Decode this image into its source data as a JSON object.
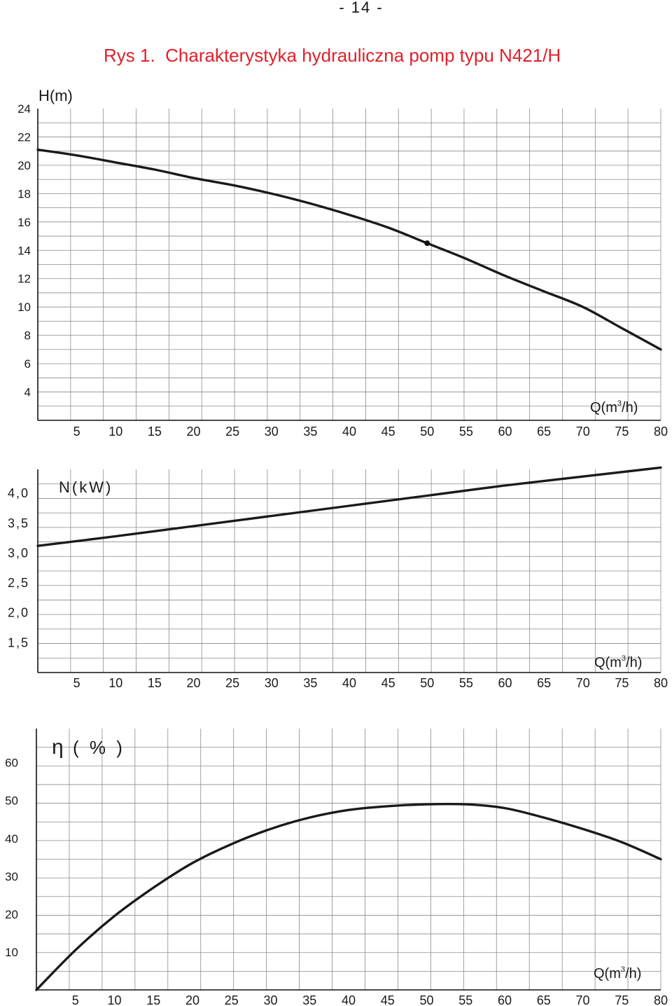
{
  "page": {
    "number": "- 14 -"
  },
  "figure": {
    "title": "Rys 1.  Charakterystyka hydrauliczna pomp typu N421/H"
  },
  "chart_data": [
    {
      "type": "line",
      "id": "head",
      "ylabel": "H(m)",
      "xlabel_prefix": "Q(m",
      "xlabel_sup": "3",
      "xlabel_suffix": "/h)",
      "xlim": [
        0,
        80
      ],
      "ylim": [
        2,
        24
      ],
      "x_ticks": [
        "5",
        "10",
        "15",
        "20",
        "25",
        "30",
        "35",
        "40",
        "45",
        "50",
        "55",
        "60",
        "65",
        "70",
        "75",
        "80"
      ],
      "y_ticks": [
        "24",
        "22",
        "20",
        "18",
        "16",
        "14",
        "12",
        "10",
        "8",
        "6",
        "4"
      ],
      "y_tick_values": [
        24,
        22,
        20,
        18,
        16,
        14,
        12,
        10,
        8,
        6,
        4
      ],
      "series": [
        {
          "name": "H",
          "x": [
            0,
            5,
            10,
            15,
            20,
            25,
            30,
            35,
            40,
            45,
            50,
            55,
            60,
            65,
            70,
            75,
            80
          ],
          "y": [
            21.1,
            20.7,
            20.2,
            19.7,
            19.1,
            18.6,
            18.0,
            17.3,
            16.5,
            15.6,
            14.5,
            13.4,
            12.2,
            11.1,
            10.0,
            8.5,
            7.0
          ]
        }
      ],
      "marker": {
        "x": 50,
        "y": 14.5
      }
    },
    {
      "type": "line",
      "id": "power",
      "ylabel": "N(kW)",
      "xlabel_prefix": "Q(m",
      "xlabel_sup": "3",
      "xlabel_suffix": "/h)",
      "xlim": [
        0,
        80
      ],
      "ylim": [
        1.0,
        4.4
      ],
      "x_ticks": [
        "5",
        "10",
        "15",
        "20",
        "25",
        "30",
        "35",
        "40",
        "45",
        "50",
        "55",
        "60",
        "65",
        "70",
        "75",
        "80"
      ],
      "y_ticks": [
        "4,0",
        "3,5",
        "3,0",
        "2,5",
        "2,0",
        "1,5"
      ],
      "y_tick_values": [
        4.0,
        3.5,
        3.0,
        2.5,
        2.0,
        1.5
      ],
      "series": [
        {
          "name": "N",
          "x": [
            0,
            10,
            20,
            30,
            40,
            50,
            60,
            70,
            80
          ],
          "y": [
            3.12,
            3.28,
            3.45,
            3.62,
            3.79,
            3.96,
            4.13,
            4.28,
            4.43
          ]
        }
      ]
    },
    {
      "type": "line",
      "id": "efficiency",
      "ylabel": "η",
      "ylabel_unit": "( % )",
      "xlabel_prefix": "Q(m",
      "xlabel_sup": "3",
      "xlabel_suffix": "/h)",
      "xlim": [
        0,
        80
      ],
      "ylim": [
        0,
        69
      ],
      "x_ticks": [
        "5",
        "10",
        "15",
        "20",
        "25",
        "30",
        "35",
        "40",
        "45",
        "50",
        "55",
        "60",
        "65",
        "70",
        "75",
        "80"
      ],
      "y_ticks": [
        "60",
        "50",
        "40",
        "30",
        "20",
        "10"
      ],
      "y_tick_values": [
        60,
        50,
        40,
        30,
        20,
        10
      ],
      "series": [
        {
          "name": "eta",
          "x": [
            0,
            5,
            10,
            15,
            20,
            25,
            30,
            35,
            40,
            45,
            50,
            55,
            60,
            65,
            70,
            75,
            80
          ],
          "y": [
            0,
            10.5,
            19.5,
            27.0,
            33.5,
            38.5,
            42.5,
            45.5,
            47.5,
            48.5,
            49.0,
            49.0,
            48.0,
            45.5,
            42.5,
            39.0,
            34.5
          ]
        }
      ]
    }
  ]
}
